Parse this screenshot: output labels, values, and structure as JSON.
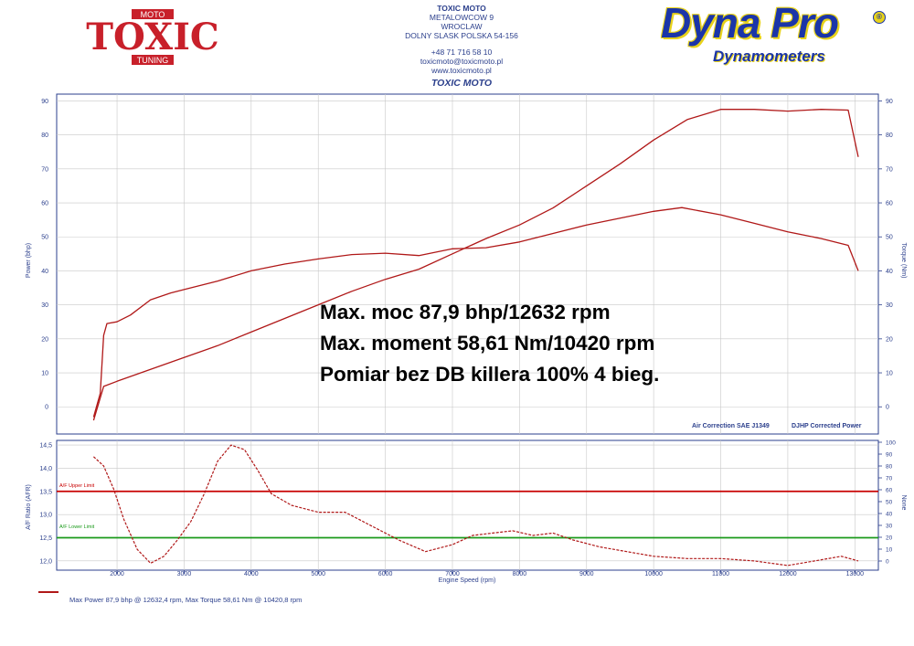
{
  "header": {
    "company": "TOXIC MOTO",
    "street": "METALOWCOW 9",
    "city": "WROCLAW",
    "region": "DOLNY SLASK POLSKA 54-156",
    "phone": "+48 71 716 58 10",
    "email": "toxicmoto@toxicmoto.pl",
    "website": "www.toxicmoto.pl",
    "subtitle": "TOXIC MOTO"
  },
  "logos": {
    "toxic": {
      "top": "MOTO",
      "main": "TOXIC",
      "bottom": "TUNING",
      "color": "#c8202a"
    },
    "dyna": {
      "main": "Dyna Pro",
      "sub": "Dynamometers",
      "reg": "®",
      "color": "#1b35a8",
      "outline": "#e8d21a"
    }
  },
  "annotations": {
    "line1": "Max. moc 87,9 bhp/12632 rpm",
    "line2": "Max. moment 58,61 Nm/10420 rpm",
    "line3": "Pomiar bez DB killera 100% 4 bieg.",
    "correction": "Air Correction SAE  J1349",
    "corrected_power": "DJHP Corrected Power",
    "afr_upper": "A/F Upper Limit",
    "afr_lower": "A/F Lower Limit",
    "footer": "Max Power 87,9 bhp @ 12632,4 rpm, Max Torque 58,61 Nm @ 10420,8 rpm"
  },
  "colors": {
    "curve": "#b01818",
    "axis": "#2b3f8c",
    "grid": "#c8c8c8",
    "upper_limit": "#c80000",
    "lower_limit": "#1a9a1a"
  },
  "chart_data": [
    {
      "type": "line",
      "xlabel": "Engine Speed (rpm)",
      "ylabel": "Power (bhp)",
      "ylabel_right": "Torque (Nm)",
      "xlim": [
        1100,
        13350
      ],
      "ylim": [
        -8,
        92
      ],
      "yticks": [
        0,
        10,
        20,
        30,
        40,
        50,
        60,
        70,
        80,
        90
      ],
      "grid": true,
      "series": [
        {
          "name": "Power",
          "x": [
            1650,
            1800,
            2000,
            2500,
            3000,
            3500,
            4000,
            4500,
            5000,
            5500,
            6000,
            6500,
            7000,
            7500,
            8000,
            8500,
            9000,
            9500,
            10000,
            10500,
            11000,
            11500,
            12000,
            12500,
            12900,
            13050
          ],
          "y": [
            -4,
            6,
            7.5,
            11,
            14.5,
            18,
            22,
            26,
            30,
            34,
            37.5,
            40.5,
            45,
            49.5,
            53.5,
            58.5,
            65,
            71.5,
            78.5,
            84.5,
            87.5,
            87.5,
            87,
            87.5,
            87.3,
            73.5
          ]
        },
        {
          "name": "Torque",
          "x": [
            1650,
            1750,
            1800,
            1850,
            2000,
            2200,
            2500,
            2800,
            3000,
            3500,
            4000,
            4500,
            5000,
            5500,
            6000,
            6500,
            7000,
            7500,
            8000,
            8500,
            9000,
            9500,
            10000,
            10420,
            11000,
            11500,
            12000,
            12500,
            12900,
            13050
          ],
          "y": [
            -3,
            4,
            21,
            24.5,
            25,
            27,
            31.5,
            33.5,
            34.5,
            37,
            40,
            42,
            43.5,
            44.8,
            45.2,
            44.5,
            46.5,
            46.8,
            48.5,
            51,
            53.5,
            55.5,
            57.5,
            58.61,
            56.5,
            54,
            51.5,
            49.5,
            47.5,
            40
          ]
        }
      ]
    },
    {
      "type": "line",
      "xlabel": "Engine Speed (rpm)",
      "ylabel": "A/F Ratio (AFR)",
      "ylabel_right": "None",
      "xlim": [
        1100,
        13350
      ],
      "ylim": [
        11.8,
        14.6
      ],
      "yticks": [
        12.0,
        12.5,
        13.0,
        13.5,
        14.0,
        14.5
      ],
      "ytick_labels": [
        "12,0",
        "12,5",
        "13,0",
        "13,5",
        "14,0",
        "14,5"
      ],
      "yticks_right": [
        0,
        10,
        20,
        30,
        40,
        50,
        60,
        70,
        80,
        90,
        100
      ],
      "xticks": [
        2000,
        3000,
        4000,
        5000,
        6000,
        7000,
        8000,
        9000,
        10000,
        11000,
        12000,
        13000
      ],
      "grid": true,
      "limits": {
        "upper": 13.5,
        "lower": 12.5
      },
      "series": [
        {
          "name": "AFR",
          "x": [
            1650,
            1800,
            1950,
            2100,
            2300,
            2500,
            2700,
            2900,
            3100,
            3300,
            3500,
            3700,
            3900,
            4100,
            4300,
            4600,
            5000,
            5400,
            5800,
            6200,
            6600,
            7000,
            7300,
            7600,
            7900,
            8200,
            8500,
            8800,
            9200,
            9600,
            10000,
            10500,
            11000,
            11500,
            12000,
            12400,
            12800,
            13050
          ],
          "y": [
            14.25,
            14.05,
            13.55,
            12.9,
            12.25,
            11.95,
            12.1,
            12.45,
            12.85,
            13.45,
            14.15,
            14.5,
            14.4,
            13.95,
            13.45,
            13.2,
            13.05,
            13.05,
            12.75,
            12.45,
            12.2,
            12.35,
            12.55,
            12.6,
            12.65,
            12.55,
            12.6,
            12.45,
            12.3,
            12.2,
            12.1,
            12.05,
            12.05,
            12.0,
            11.9,
            12.0,
            12.1,
            12.0
          ]
        }
      ]
    }
  ]
}
